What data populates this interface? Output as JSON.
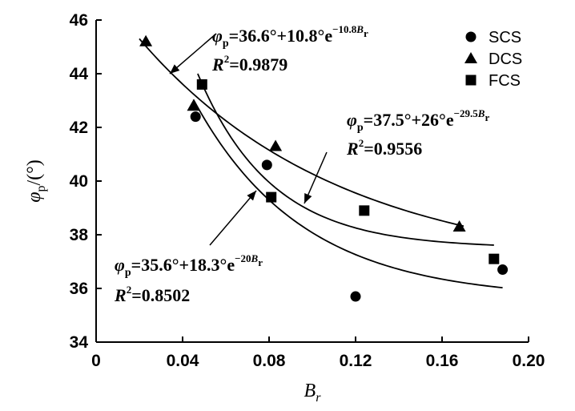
{
  "chart_data": {
    "type": "scatter",
    "xlabel": "B_r",
    "xlabel_main": "B",
    "xlabel_sub": "r",
    "ylabel": "φ_p/(°)",
    "ylabel_main": "φ",
    "ylabel_sub": "p",
    "ylabel_tail": "/(°)",
    "xlim": [
      0,
      0.2
    ],
    "ylim": [
      34,
      46
    ],
    "x_ticks": [
      0,
      0.04,
      0.08,
      0.12,
      0.16,
      0.2
    ],
    "x_tick_labels": [
      "0",
      "0.04",
      "0.08",
      "0.12",
      "0.16",
      "0.20"
    ],
    "y_ticks": [
      34,
      36,
      38,
      40,
      42,
      44,
      46
    ],
    "y_tick_labels": [
      "34",
      "36",
      "38",
      "40",
      "42",
      "44",
      "46"
    ],
    "grid": false,
    "legend_position": "top-right",
    "series": [
      {
        "name": "SCS",
        "marker": "circle",
        "points": [
          [
            0.046,
            42.4
          ],
          [
            0.079,
            40.6
          ],
          [
            0.12,
            35.7
          ],
          [
            0.188,
            36.7
          ]
        ]
      },
      {
        "name": "DCS",
        "marker": "triangle",
        "points": [
          [
            0.023,
            45.2
          ],
          [
            0.045,
            42.8
          ],
          [
            0.083,
            41.3
          ],
          [
            0.168,
            38.3
          ]
        ]
      },
      {
        "name": "FCS",
        "marker": "square",
        "points": [
          [
            0.049,
            43.6
          ],
          [
            0.081,
            39.4
          ],
          [
            0.124,
            38.9
          ],
          [
            0.184,
            37.1
          ]
        ]
      }
    ],
    "fits": [
      {
        "series": "DCS",
        "a": 36.6,
        "b": 10.8,
        "k": 10.8,
        "x_range": [
          0.02,
          0.17
        ],
        "eq_prefix": "=36.6°+10.8°e",
        "eq_exp": "−10.8",
        "r2_text": "=0.9879"
      },
      {
        "series": "FCS",
        "a": 37.5,
        "b": 26,
        "k": 29.5,
        "x_range": [
          0.047,
          0.184
        ],
        "eq_prefix": "=37.5°+26°e",
        "eq_exp": "−29.5",
        "r2_text": "=0.9556"
      },
      {
        "series": "SCS",
        "a": 35.6,
        "b": 18.3,
        "k": 20,
        "x_range": [
          0.045,
          0.188
        ],
        "eq_prefix": "=35.6°+18.3°e",
        "eq_exp": "−20",
        "r2_text": "=0.8502"
      }
    ],
    "symbols": {
      "phi": "φ",
      "phi_sub": "p",
      "B": "B",
      "B_sub": "r",
      "R": "R",
      "R_sup": "2"
    }
  }
}
